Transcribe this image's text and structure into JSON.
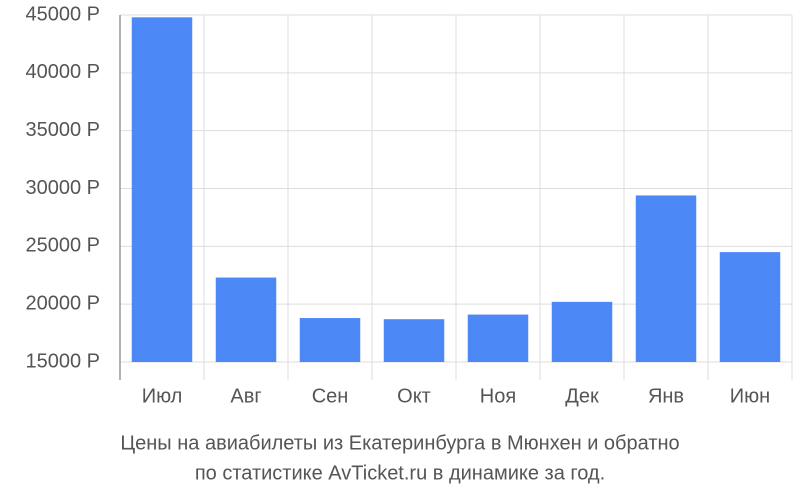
{
  "chart_data": {
    "type": "bar",
    "title": [
      "Цены на авиабилеты из Екатеринбурга в Мюнхен и обратно",
      "по статистике AvTicket.ru в динамике за год."
    ],
    "categories": [
      "Июл",
      "Авг",
      "Сен",
      "Окт",
      "Ноя",
      "Дек",
      "Янв",
      "Июн"
    ],
    "values": [
      44800,
      22300,
      18800,
      18700,
      19100,
      20200,
      29400,
      24500
    ],
    "color": "#4d88f7",
    "ylim": [
      15000,
      45000
    ],
    "yticks": [
      {
        "value": 15000,
        "label": "15000 Р"
      },
      {
        "value": 20000,
        "label": "20000 Р"
      },
      {
        "value": 25000,
        "label": "25000 Р"
      },
      {
        "value": 30000,
        "label": "30000 Р"
      },
      {
        "value": 35000,
        "label": "35000 Р"
      },
      {
        "value": 40000,
        "label": "40000 Р"
      },
      {
        "value": 45000,
        "label": "45000 Р"
      }
    ],
    "grid": true
  }
}
